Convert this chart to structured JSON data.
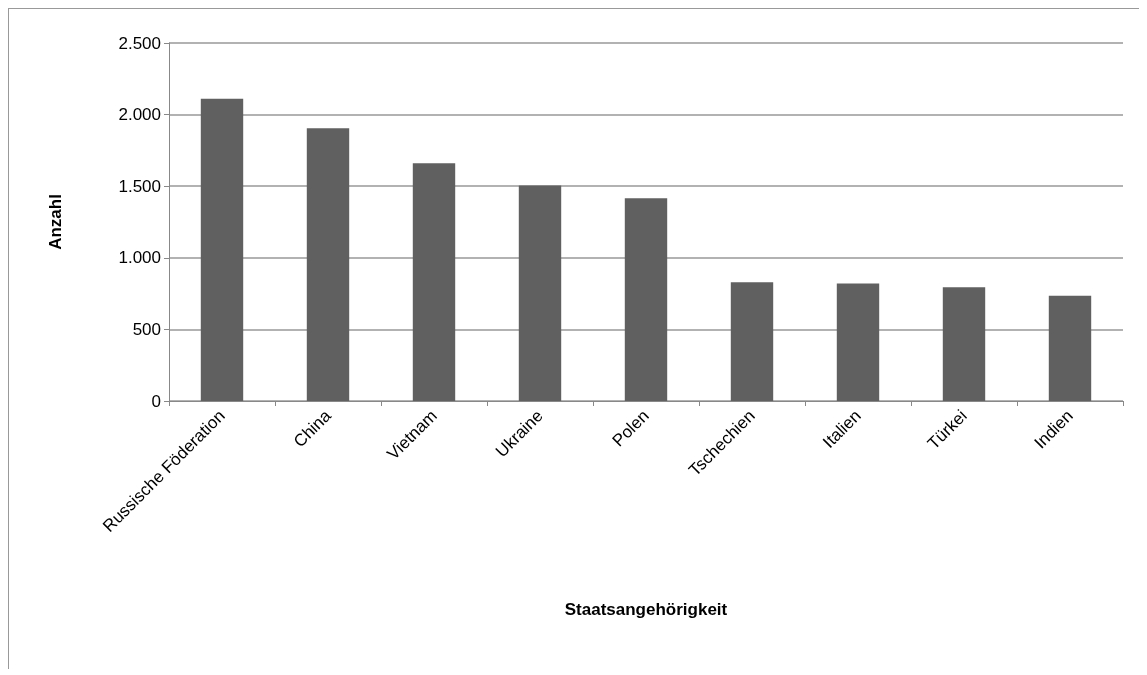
{
  "chart_data": {
    "type": "bar",
    "xlabel": "Staatsangehörigkeit",
    "ylabel": "Anzahl",
    "categories": [
      "Russische Föderation",
      "China",
      "Vietnam",
      "Ukraine",
      "Polen",
      "Tschechien",
      "Italien",
      "Türkei",
      "Indien"
    ],
    "values": [
      2110,
      1905,
      1660,
      1505,
      1415,
      830,
      820,
      795,
      735
    ],
    "color": "#606060",
    "ylim": [
      0,
      2500
    ],
    "yticks": [
      {
        "value": 0,
        "label": "0"
      },
      {
        "value": 500,
        "label": "500"
      },
      {
        "value": 1000,
        "label": "1.000"
      },
      {
        "value": 1500,
        "label": "1.500"
      },
      {
        "value": 2000,
        "label": "2.000"
      },
      {
        "value": 2500,
        "label": "2.500"
      }
    ],
    "grid": "y"
  }
}
